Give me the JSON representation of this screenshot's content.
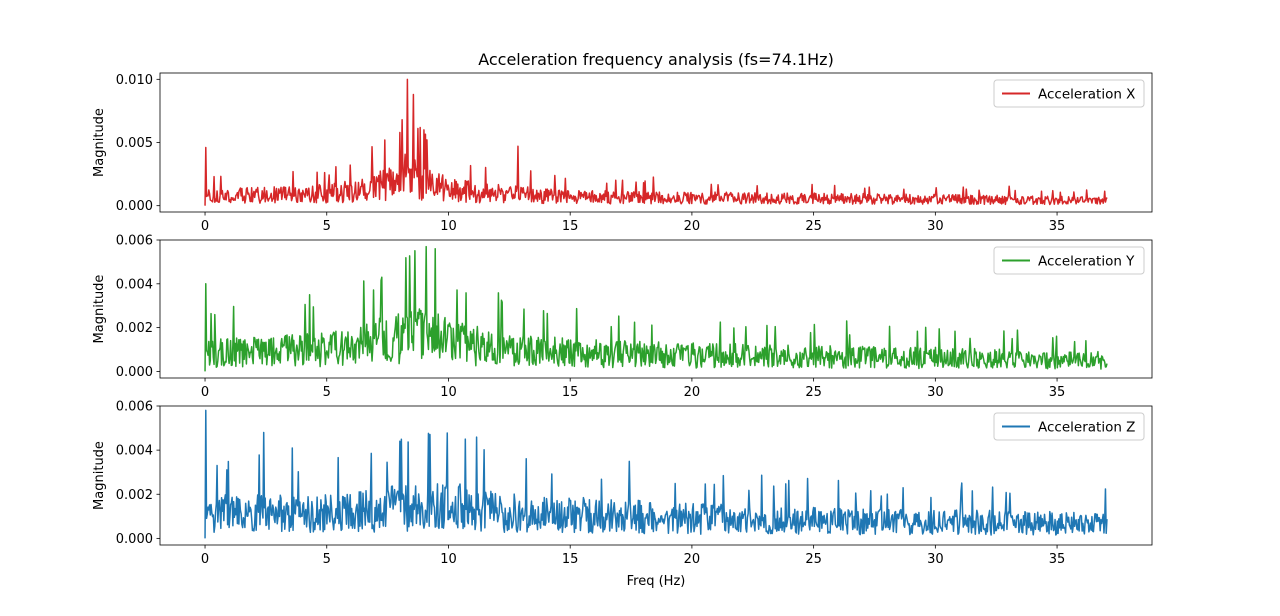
{
  "figure": {
    "title": "Acceleration frequency analysis (fs=74.1Hz)",
    "xlabel": "Freq (Hz)"
  },
  "chart_data": [
    {
      "type": "line",
      "ylabel": "Magnitude",
      "xlim": [
        -1.85,
        38.9
      ],
      "ylim": [
        -0.0005,
        0.0105
      ],
      "xticks": [
        0,
        5,
        10,
        15,
        20,
        25,
        30,
        35
      ],
      "yticks": [
        0.0,
        0.005,
        0.01
      ],
      "ytick_labels": [
        "0.000",
        "0.005",
        "0.010"
      ],
      "legend_position": "top-right",
      "series": [
        {
          "name": "Acceleration X",
          "color": "#d62728",
          "x_range": [
            0,
            37.05
          ],
          "n_points": 1200,
          "noise_envelope": [
            [
              0,
              0.0014
            ],
            [
              3,
              0.0015
            ],
            [
              5,
              0.0017
            ],
            [
              6.5,
              0.0022
            ],
            [
              7.5,
              0.003
            ],
            [
              8.3,
              0.0042
            ],
            [
              9,
              0.0032
            ],
            [
              10,
              0.0022
            ],
            [
              12,
              0.0017
            ],
            [
              15,
              0.0012
            ],
            [
              20,
              0.0011
            ],
            [
              25,
              0.001
            ],
            [
              30,
              0.0009
            ],
            [
              37,
              0.0007
            ]
          ],
          "peaks": [
            [
              0,
              0.0046
            ],
            [
              8.1,
              0.0068
            ],
            [
              8.3,
              0.01
            ],
            [
              8.55,
              0.0088
            ],
            [
              12.85,
              0.0047
            ],
            [
              7.4,
              0.0052
            ],
            [
              9.0,
              0.006
            ]
          ]
        }
      ]
    },
    {
      "type": "line",
      "ylabel": "Magnitude",
      "xlim": [
        -1.85,
        38.9
      ],
      "ylim": [
        -0.0003,
        0.006
      ],
      "xticks": [
        0,
        5,
        10,
        15,
        20,
        25,
        30,
        35
      ],
      "yticks": [
        0.0,
        0.002,
        0.004,
        0.006
      ],
      "ytick_labels": [
        "0.000",
        "0.002",
        "0.004",
        "0.006"
      ],
      "legend_position": "top-right",
      "series": [
        {
          "name": "Acceleration Y",
          "color": "#2ca02c",
          "x_range": [
            0,
            37.05
          ],
          "n_points": 1200,
          "noise_envelope": [
            [
              0,
              0.0015
            ],
            [
              4,
              0.0017
            ],
            [
              6,
              0.0019
            ],
            [
              7,
              0.0024
            ],
            [
              9,
              0.003
            ],
            [
              10,
              0.0024
            ],
            [
              12,
              0.0019
            ],
            [
              15,
              0.0015
            ],
            [
              20,
              0.0013
            ],
            [
              25,
              0.0012
            ],
            [
              30,
              0.0011
            ],
            [
              37,
              0.0009
            ]
          ],
          "peaks": [
            [
              0,
              0.004
            ],
            [
              9.1,
              0.0057
            ],
            [
              9.45,
              0.0056
            ],
            [
              7.25,
              0.0043
            ],
            [
              4.3,
              0.0035
            ]
          ]
        }
      ]
    },
    {
      "type": "line",
      "ylabel": "Magnitude",
      "xlim": [
        -1.85,
        38.9
      ],
      "ylim": [
        -0.0003,
        0.006
      ],
      "xticks": [
        0,
        5,
        10,
        15,
        20,
        25,
        30,
        35
      ],
      "yticks": [
        0.0,
        0.002,
        0.004,
        0.006
      ],
      "ytick_labels": [
        "0.000",
        "0.002",
        "0.004",
        "0.006"
      ],
      "legend_position": "top-right",
      "series": [
        {
          "name": "Acceleration Z",
          "color": "#1f77b4",
          "x_range": [
            0,
            37.05
          ],
          "n_points": 1200,
          "noise_envelope": [
            [
              0,
              0.002
            ],
            [
              5,
              0.0021
            ],
            [
              8,
              0.0024
            ],
            [
              10,
              0.0026
            ],
            [
              12,
              0.0022
            ],
            [
              15,
              0.0019
            ],
            [
              20,
              0.0016
            ],
            [
              25,
              0.0014
            ],
            [
              30,
              0.0013
            ],
            [
              37,
              0.0012
            ]
          ],
          "peaks": [
            [
              0,
              0.0058
            ],
            [
              2.4,
              0.0048
            ],
            [
              8,
              0.0044
            ],
            [
              10.7,
              0.0045
            ]
          ]
        }
      ]
    }
  ]
}
